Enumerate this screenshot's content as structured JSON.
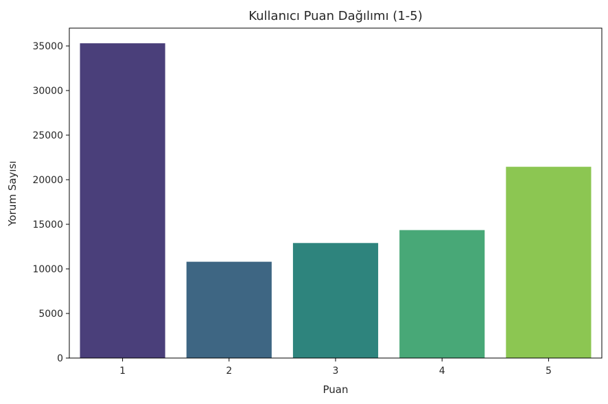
{
  "chart_data": {
    "type": "bar",
    "title": "Kullanıcı Puan Dağılımı (1-5)",
    "xlabel": "Puan",
    "ylabel": "Yorum Sayısı",
    "categories": [
      "1",
      "2",
      "3",
      "4",
      "5"
    ],
    "values": [
      35300,
      10800,
      12900,
      14350,
      21450
    ],
    "colors": [
      "#4a3f7a",
      "#3e6683",
      "#2e847d",
      "#48a877",
      "#8cc652"
    ],
    "ylim": [
      0,
      37000
    ],
    "yticks": [
      0,
      5000,
      10000,
      15000,
      20000,
      25000,
      30000,
      35000
    ],
    "ytick_labels": [
      "0",
      "5000",
      "10000",
      "15000",
      "20000",
      "25000",
      "30000",
      "35000"
    ],
    "grid": false,
    "legend": "none"
  }
}
